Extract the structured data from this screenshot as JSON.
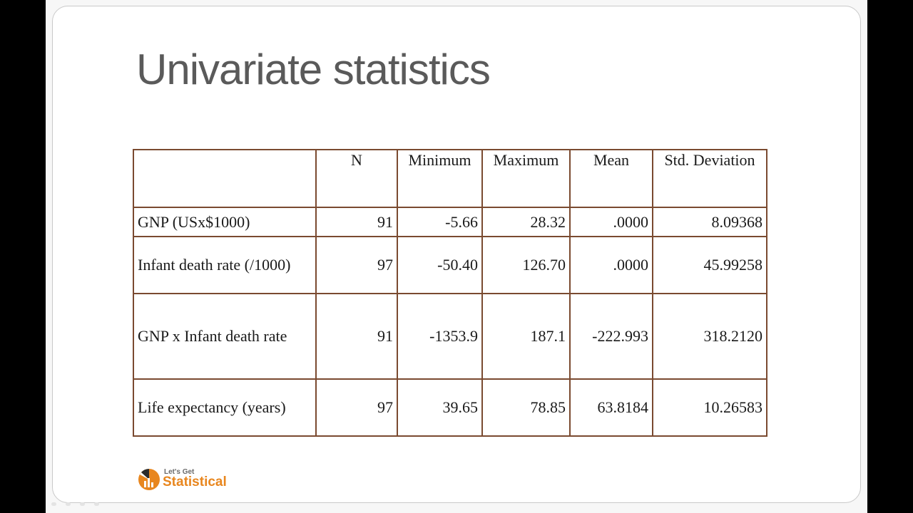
{
  "slide": {
    "title": "Univariate statistics"
  },
  "table": {
    "headers": [
      "",
      "N",
      "Minimum",
      "Maximum",
      "Mean",
      "Std. Deviation"
    ],
    "rows": [
      {
        "label": "GNP (USx$1000)",
        "n": "91",
        "minimum": "-5.66",
        "maximum": "28.32",
        "mean": ".0000",
        "std_dev": "8.09368"
      },
      {
        "label": "Infant death rate (/1000)",
        "n": "97",
        "minimum": "-50.40",
        "maximum": "126.70",
        "mean": ".0000",
        "std_dev": "45.99258"
      },
      {
        "label": "GNP x Infant death rate",
        "n": "91",
        "minimum": "-1353.9",
        "maximum": "187.1",
        "mean": "-222.993",
        "std_dev": "318.2120"
      },
      {
        "label": "Life expectancy (years)",
        "n": "97",
        "minimum": "39.65",
        "maximum": "78.85",
        "mean": "63.8184",
        "std_dev": "10.26583"
      }
    ],
    "border_color": "#7a4a30"
  },
  "logo": {
    "top_text": "Let's Get",
    "main_text": "Statistical",
    "accent_color": "#e8861e",
    "icon": "pie-chart-icon"
  }
}
